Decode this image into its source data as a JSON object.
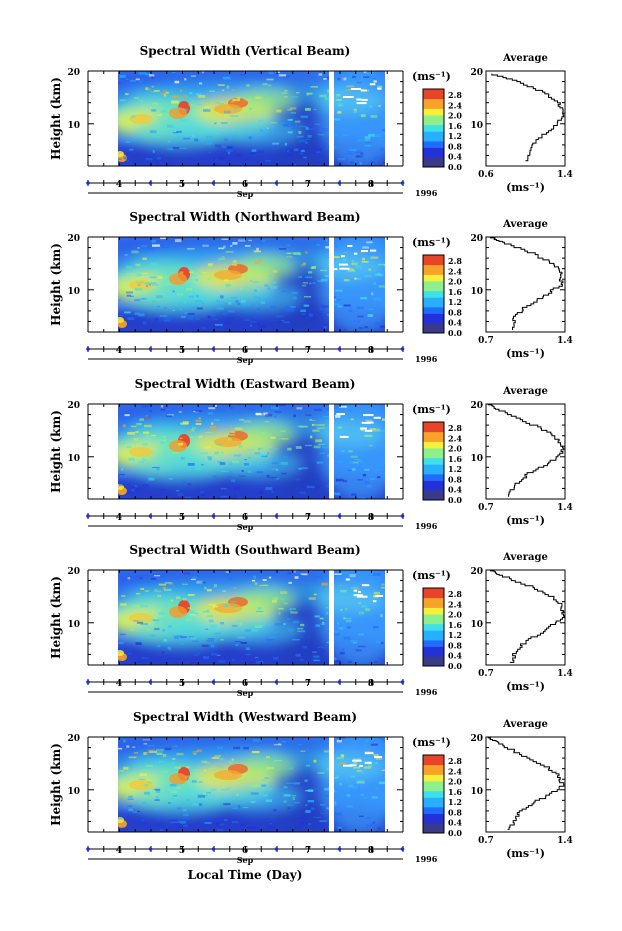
{
  "chart_data": [
    {
      "type": "heatmap",
      "title": "Spectral Width (Vertical Beam)",
      "ylabel": "Height (km)",
      "ylim": [
        2,
        20
      ],
      "y_ticks": [
        "20",
        "10"
      ],
      "x_ticks": [
        "4",
        "5",
        "6",
        "7",
        "8"
      ],
      "month_label": "Sep",
      "year_label": "1996",
      "colorbar": {
        "unit": "(ms⁻¹)",
        "ticks": [
          "2.8",
          "2.4",
          "2.0",
          "1.6",
          "1.2",
          "0.8",
          "0.4",
          "0.0"
        ]
      },
      "profile": {
        "title": "Average",
        "xlim": [
          0.6,
          1.4
        ],
        "x_ticks": [
          "0.6",
          "1.4"
        ],
        "xlabel": "(ms⁻¹)",
        "points": [
          [
            1.0,
            3
          ],
          [
            1.06,
            6
          ],
          [
            1.18,
            8
          ],
          [
            1.32,
            10
          ],
          [
            1.38,
            12
          ],
          [
            1.34,
            14
          ],
          [
            1.2,
            16
          ],
          [
            0.95,
            18
          ],
          [
            0.66,
            19.5
          ]
        ]
      }
    },
    {
      "type": "heatmap",
      "title": "Spectral Width (Northward Beam)",
      "ylabel": "Height (km)",
      "ylim": [
        2,
        20
      ],
      "y_ticks": [
        "20",
        "10"
      ],
      "x_ticks": [
        "4",
        "5",
        "6",
        "7",
        "8"
      ],
      "month_label": "Sep",
      "year_label": "1996",
      "colorbar": {
        "unit": "(ms⁻¹)",
        "ticks": [
          "2.8",
          "2.4",
          "2.0",
          "1.6",
          "1.2",
          "0.8",
          "0.4",
          "0.0"
        ]
      },
      "profile": {
        "title": "Average",
        "xlim": [
          0.7,
          1.4
        ],
        "x_ticks": [
          "0.7",
          "1.4"
        ],
        "xlabel": "(ms⁻¹)",
        "points": [
          [
            0.92,
            2.5
          ],
          [
            0.96,
            5
          ],
          [
            1.05,
            7
          ],
          [
            1.22,
            9
          ],
          [
            1.36,
            11
          ],
          [
            1.37,
            13
          ],
          [
            1.3,
            15
          ],
          [
            1.12,
            17
          ],
          [
            0.86,
            19
          ],
          [
            0.74,
            20
          ]
        ]
      }
    },
    {
      "type": "heatmap",
      "title": "Spectral Width (Eastward Beam)",
      "ylabel": "Height (km)",
      "ylim": [
        2,
        20
      ],
      "y_ticks": [
        "20",
        "10"
      ],
      "x_ticks": [
        "4",
        "5",
        "6",
        "7",
        "8"
      ],
      "month_label": "Sep",
      "year_label": "1996",
      "colorbar": {
        "unit": "(ms⁻¹)",
        "ticks": [
          "2.8",
          "2.4",
          "2.0",
          "1.6",
          "1.2",
          "0.8",
          "0.4",
          "0.0"
        ]
      },
      "profile": {
        "title": "Average",
        "xlim": [
          0.7,
          1.4
        ],
        "x_ticks": [
          "0.7",
          "1.4"
        ],
        "xlabel": "(ms⁻¹)",
        "points": [
          [
            0.9,
            2.5
          ],
          [
            0.96,
            5
          ],
          [
            1.08,
            7
          ],
          [
            1.26,
            9
          ],
          [
            1.38,
            11
          ],
          [
            1.35,
            13
          ],
          [
            1.24,
            15
          ],
          [
            1.04,
            17
          ],
          [
            0.82,
            19
          ],
          [
            0.72,
            20
          ]
        ]
      }
    },
    {
      "type": "heatmap",
      "title": "Spectral Width (Southward Beam)",
      "ylabel": "Height (km)",
      "ylim": [
        2,
        20
      ],
      "y_ticks": [
        "20",
        "10"
      ],
      "x_ticks": [
        "4",
        "5",
        "6",
        "7",
        "8"
      ],
      "month_label": "Sep",
      "year_label": "1996",
      "colorbar": {
        "unit": "(ms⁻¹)",
        "ticks": [
          "2.8",
          "2.4",
          "2.0",
          "1.6",
          "1.2",
          "0.8",
          "0.4",
          "0.0"
        ]
      },
      "profile": {
        "title": "Average",
        "xlim": [
          0.7,
          1.4
        ],
        "x_ticks": [
          "0.7",
          "1.4"
        ],
        "xlabel": "(ms⁻¹)",
        "points": [
          [
            0.92,
            2.5
          ],
          [
            0.97,
            5
          ],
          [
            1.08,
            7
          ],
          [
            1.25,
            9
          ],
          [
            1.37,
            11
          ],
          [
            1.38,
            13
          ],
          [
            1.3,
            15
          ],
          [
            1.1,
            17
          ],
          [
            0.85,
            19
          ],
          [
            0.74,
            20
          ]
        ]
      }
    },
    {
      "type": "heatmap",
      "title": "Spectral Width (Westward Beam)",
      "ylabel": "Height (km)",
      "ylim": [
        2,
        20
      ],
      "y_ticks": [
        "20",
        "10"
      ],
      "x_ticks": [
        "4",
        "5",
        "6",
        "7",
        "8"
      ],
      "month_label": "Sep",
      "year_label": "1996",
      "colorbar": {
        "unit": "(ms⁻¹)",
        "ticks": [
          "2.8",
          "2.4",
          "2.0",
          "1.6",
          "1.2",
          "0.8",
          "0.4",
          "0.0"
        ]
      },
      "profile": {
        "title": "Average",
        "xlim": [
          0.7,
          1.4
        ],
        "x_ticks": [
          "0.7",
          "1.4"
        ],
        "xlabel": "(ms⁻¹)",
        "points": [
          [
            0.91,
            2.5
          ],
          [
            0.96,
            5
          ],
          [
            1.07,
            7
          ],
          [
            1.24,
            9
          ],
          [
            1.39,
            11
          ],
          [
            1.33,
            13
          ],
          [
            1.2,
            15
          ],
          [
            1.0,
            17
          ],
          [
            0.8,
            19
          ],
          [
            0.72,
            20
          ]
        ]
      }
    }
  ],
  "footer": {
    "xlabel": "Local Time (Day)"
  }
}
